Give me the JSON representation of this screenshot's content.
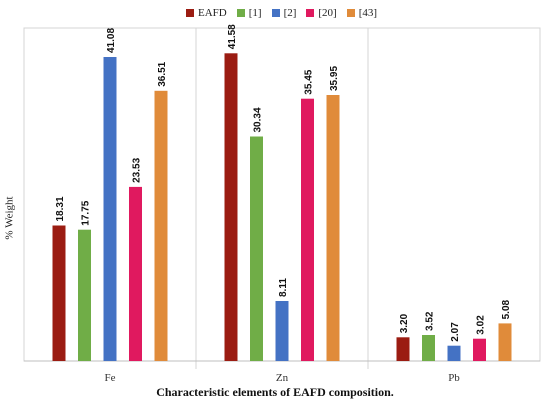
{
  "chart_data": {
    "type": "bar",
    "title": "",
    "xlabel": "Characteristic elements of EAFD composition.",
    "ylabel": "% Weight",
    "categories": [
      "Fe",
      "Zn",
      "Pb"
    ],
    "ylim": [
      0,
      45
    ],
    "grid": false,
    "legend_position": "top",
    "series": [
      {
        "name": "EAFD",
        "color": "#9b1c12",
        "values": [
          18.31,
          41.58,
          3.2
        ]
      },
      {
        "name": "[1]",
        "color": "#70ad47",
        "values": [
          17.75,
          30.34,
          3.52
        ]
      },
      {
        "name": "[2]",
        "color": "#4472c4",
        "values": [
          41.08,
          8.11,
          2.07
        ]
      },
      {
        "name": "[20]",
        "color": "#e0195f",
        "values": [
          23.53,
          35.45,
          3.02
        ]
      },
      {
        "name": "[43]",
        "color": "#e08b3a",
        "values": [
          36.51,
          35.95,
          5.08
        ]
      }
    ],
    "value_labels": [
      [
        "18.31",
        "41.58",
        "3.20"
      ],
      [
        "17.75",
        "30.34",
        "3.52"
      ],
      [
        "41.08",
        "8.11",
        "2.07"
      ],
      [
        "23.53",
        "35.45",
        "3.02"
      ],
      [
        "36.51",
        "35.95",
        "5.08"
      ]
    ]
  }
}
